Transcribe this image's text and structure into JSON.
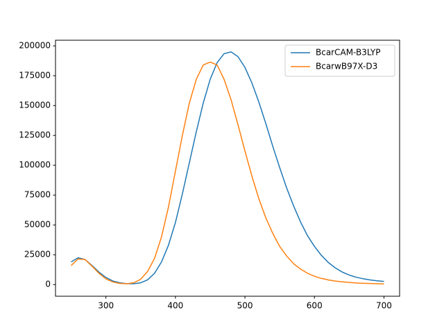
{
  "chart_data": {
    "type": "line",
    "x": [
      250,
      260,
      270,
      280,
      290,
      300,
      310,
      320,
      330,
      340,
      350,
      360,
      370,
      380,
      390,
      400,
      410,
      420,
      430,
      440,
      450,
      460,
      470,
      480,
      490,
      500,
      510,
      520,
      530,
      540,
      550,
      560,
      570,
      580,
      590,
      600,
      610,
      620,
      630,
      640,
      650,
      660,
      670,
      680,
      690,
      700
    ],
    "series": [
      {
        "name": "BcarCAM-B3LYP",
        "color": "#1f77b4",
        "values": [
          19000,
          22500,
          21000,
          16000,
          10500,
          6000,
          3000,
          1500,
          800,
          700,
          1500,
          4000,
          9500,
          19000,
          33000,
          52000,
          76000,
          102000,
          128000,
          152000,
          172000,
          186000,
          193500,
          195000,
          191000,
          182000,
          169000,
          153000,
          135000,
          116000,
          98000,
          81000,
          66000,
          52500,
          41000,
          32000,
          24500,
          18500,
          14000,
          10500,
          8000,
          6200,
          4900,
          3900,
          3200,
          2700
        ]
      },
      {
        "name": "BcarwB97X-D3",
        "color": "#ff7f0e",
        "values": [
          16000,
          21500,
          21000,
          15500,
          9500,
          4800,
          2200,
          1000,
          700,
          1500,
          4500,
          11000,
          22000,
          40000,
          65000,
          95000,
          125000,
          152000,
          172000,
          184000,
          186500,
          184000,
          172000,
          155000,
          134000,
          112000,
          91000,
          72000,
          56000,
          43000,
          32000,
          24000,
          17500,
          13000,
          9500,
          7000,
          5200,
          3900,
          3000,
          2300,
          1800,
          1400,
          1100,
          900,
          750,
          600
        ]
      }
    ],
    "xlim": [
      227.5,
      722.5
    ],
    "ylim": [
      -9750,
      204750
    ],
    "xticks": [
      300,
      400,
      500,
      600,
      700
    ],
    "yticks": [
      0,
      25000,
      50000,
      75000,
      100000,
      125000,
      150000,
      175000,
      200000
    ],
    "legend": "upper right"
  }
}
